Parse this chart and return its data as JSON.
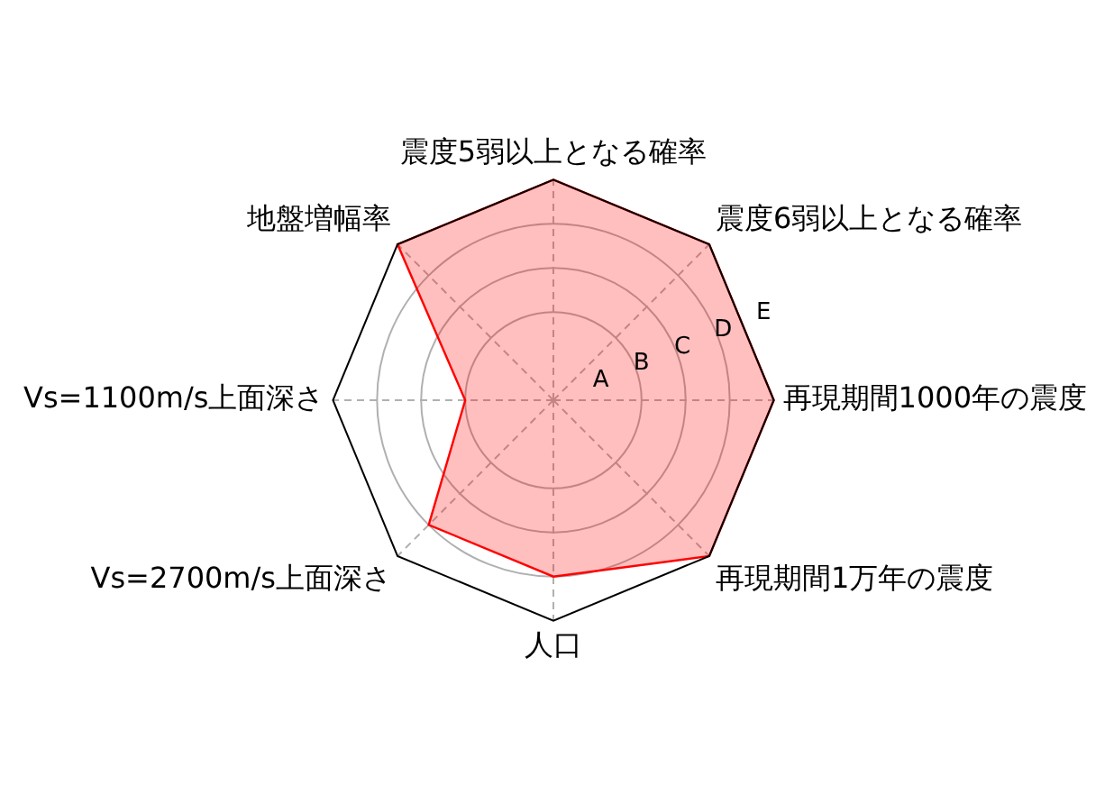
{
  "chart_data": {
    "type": "radar",
    "categories": [
      "震度5弱以上となる確率",
      "震度6弱以上となる確率",
      "再現期間1000年の震度",
      "再現期間1万年の震度",
      "人口",
      "Vs=2700m/s上面深さ",
      "Vs=1100m/s上面深さ",
      "地盤増幅率"
    ],
    "series": [
      {
        "color": "#ff0000",
        "values": [
          5,
          5,
          5,
          5,
          4,
          4,
          2,
          5
        ]
      }
    ],
    "ylim": [
      0,
      5
    ],
    "yticks": [
      {
        "value": 1,
        "label": "A"
      },
      {
        "value": 2,
        "label": "B"
      },
      {
        "value": 3,
        "label": "C"
      },
      {
        "value": 4,
        "label": "D"
      },
      {
        "value": 5,
        "label": "E"
      }
    ],
    "grid": true,
    "legend": false,
    "marker": "none",
    "line_style": "solid"
  }
}
